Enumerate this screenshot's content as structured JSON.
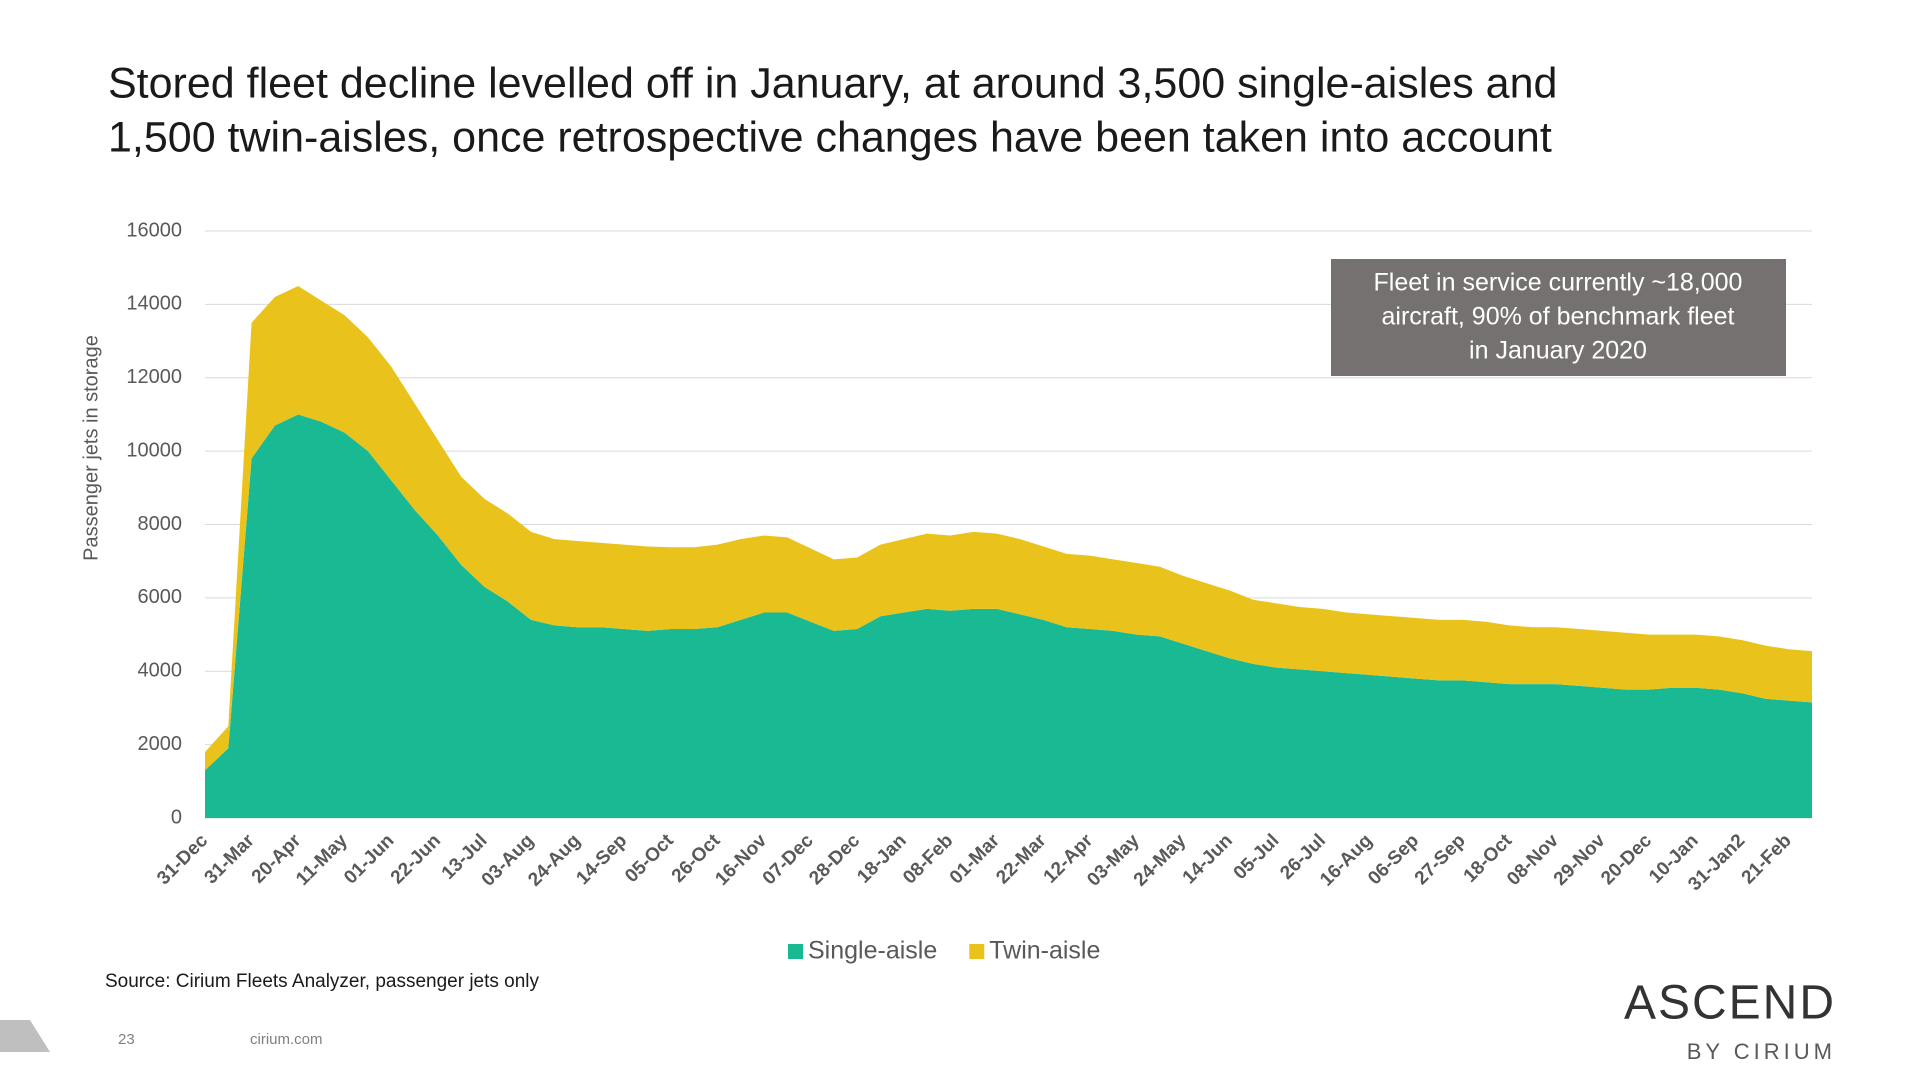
{
  "chart_data": {
    "type": "stacked_area",
    "title": [
      "Stored fleet decline levelled off in January, at around 3,500 single-aisles and",
      "1,500 twin-aisles, once retrospective changes have been taken into account"
    ],
    "y_label": "Passenger jets in storage",
    "annotation": [
      "Fleet in service currently ~18,000",
      "aircraft, 90% of benchmark fleet",
      "in January 2020"
    ],
    "source": "Source: Cirium Fleets Analyzer, passenger jets only",
    "categories": [
      "31-Dec",
      null,
      "31-Mar",
      null,
      "20-Apr",
      null,
      "11-May",
      null,
      "01-Jun",
      null,
      "22-Jun",
      null,
      "13-Jul",
      null,
      "03-Aug",
      null,
      "24-Aug",
      null,
      "14-Sep",
      null,
      "05-Oct",
      null,
      "26-Oct",
      null,
      "16-Nov",
      null,
      "07-Dec",
      null,
      "28-Dec",
      null,
      "18-Jan",
      null,
      "08-Feb",
      null,
      "01-Mar",
      null,
      "22-Mar",
      null,
      "12-Apr",
      null,
      "03-May",
      null,
      "24-May",
      null,
      "14-Jun",
      null,
      "05-Jul",
      null,
      "26-Jul",
      null,
      "16-Aug",
      null,
      "06-Sep",
      null,
      "27-Sep",
      null,
      "18-Oct",
      null,
      "08-Nov",
      null,
      "29-Nov",
      null,
      "20-Dec",
      null,
      "10-Jan",
      null,
      "31-Jan2",
      null,
      "21-Feb",
      null
    ],
    "series": [
      {
        "name": "Single-aisle",
        "color": "#19b994",
        "values": [
          1300,
          1900,
          9800,
          10700,
          11000,
          10800,
          10500,
          10000,
          9200,
          8400,
          7700,
          6900,
          6300,
          5900,
          5400,
          5250,
          5200,
          5200,
          5150,
          5100,
          5150,
          5150,
          5200,
          5400,
          5600,
          5600,
          5350,
          5100,
          5150,
          5500,
          5600,
          5700,
          5650,
          5700,
          5700,
          5550,
          5400,
          5200,
          5150,
          5100,
          5000,
          4950,
          4750,
          4550,
          4350,
          4200,
          4100,
          4050,
          4000,
          3950,
          3900,
          3850,
          3800,
          3750,
          3750,
          3700,
          3650,
          3650,
          3650,
          3600,
          3550,
          3500,
          3500,
          3550,
          3550,
          3500,
          3400,
          3250,
          3200,
          3150
        ]
      },
      {
        "name": "Twin-aisle",
        "color": "#e9c31b",
        "values": [
          500,
          600,
          3700,
          3500,
          3500,
          3300,
          3200,
          3100,
          3100,
          2900,
          2600,
          2400,
          2400,
          2400,
          2400,
          2350,
          2350,
          2300,
          2300,
          2300,
          2230,
          2230,
          2250,
          2200,
          2100,
          2050,
          2000,
          1950,
          1950,
          1950,
          2000,
          2050,
          2050,
          2100,
          2050,
          2050,
          2000,
          2000,
          2000,
          1950,
          1950,
          1900,
          1850,
          1850,
          1850,
          1750,
          1750,
          1700,
          1700,
          1650,
          1650,
          1650,
          1650,
          1650,
          1650,
          1650,
          1600,
          1550,
          1550,
          1550,
          1550,
          1550,
          1500,
          1450,
          1450,
          1450,
          1450,
          1450,
          1400,
          1400
        ]
      }
    ],
    "ylim": [
      0,
      16000
    ],
    "yticks": [
      0,
      2000,
      4000,
      6000,
      8000,
      10000,
      12000,
      14000,
      16000
    ],
    "grid": true,
    "legend": "bottom"
  },
  "footer": {
    "page": "23",
    "site": "cirium.com",
    "logo": "ASCEND",
    "logo_sub": "BY CIRIUM"
  }
}
